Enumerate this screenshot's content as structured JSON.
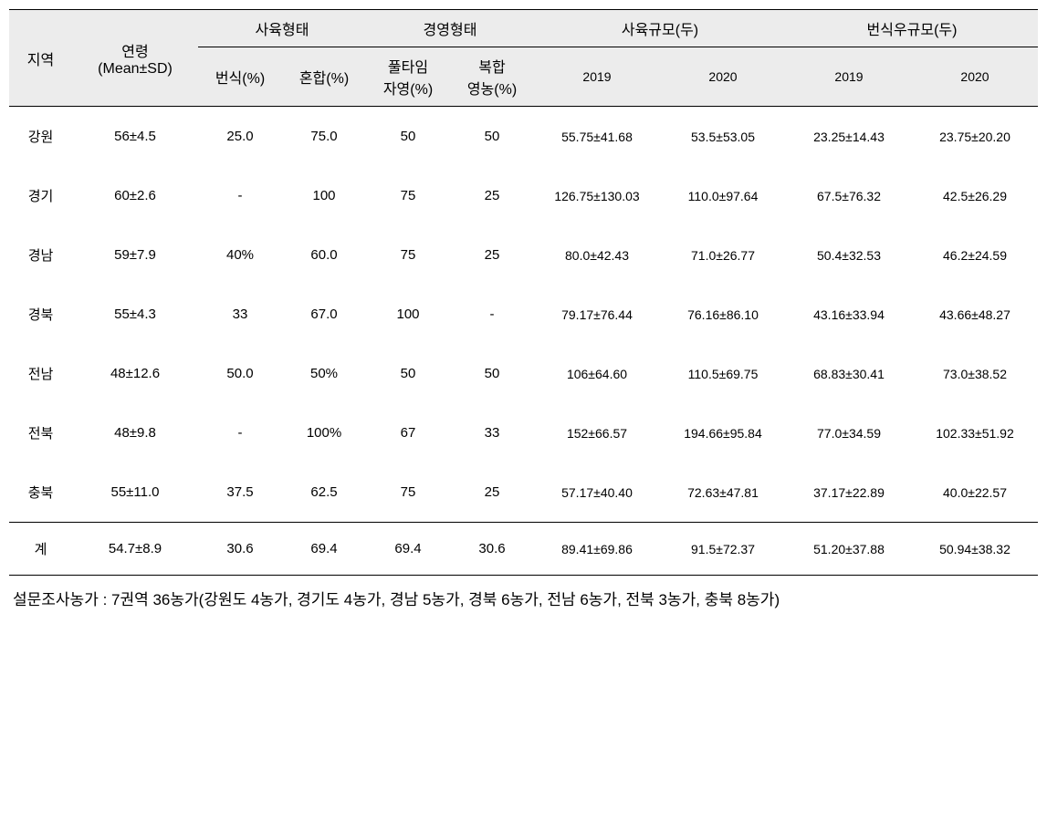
{
  "headers": {
    "region": "지역",
    "age": "연령\n(Mean±SD)",
    "age_line1": "연령",
    "age_line2": "(Mean±SD)",
    "breeding_type": "사육형태",
    "breeding_pct": "번식(%)",
    "mixed_pct": "혼합(%)",
    "management_type": "경영형태",
    "fulltime_line1": "풀타임",
    "fulltime_line2": "자영(%)",
    "complex_line1": "복합",
    "complex_line2": "영농(%)",
    "breeding_scale": "사육규모(두)",
    "reproduction_scale": "번식우규모(두)",
    "year_2019": "2019",
    "year_2020": "2020"
  },
  "rows": [
    {
      "region": "강원",
      "age": "56±4.5",
      "breeding": "25.0",
      "mixed": "75.0",
      "fulltime": "50",
      "complex": "50",
      "scale_2019": "55.75±41.68",
      "scale_2020": "53.5±53.05",
      "repro_2019": "23.25±14.43",
      "repro_2020": "23.75±20.20"
    },
    {
      "region": "경기",
      "age": "60±2.6",
      "breeding": "-",
      "mixed": "100",
      "fulltime": "75",
      "complex": "25",
      "scale_2019": "126.75±130.03",
      "scale_2020": "110.0±97.64",
      "repro_2019": "67.5±76.32",
      "repro_2020": "42.5±26.29"
    },
    {
      "region": "경남",
      "age": "59±7.9",
      "breeding": "40%",
      "mixed": "60.0",
      "fulltime": "75",
      "complex": "25",
      "scale_2019": "80.0±42.43",
      "scale_2020": "71.0±26.77",
      "repro_2019": "50.4±32.53",
      "repro_2020": "46.2±24.59"
    },
    {
      "region": "경북",
      "age": "55±4.3",
      "breeding": "33",
      "mixed": "67.0",
      "fulltime": "100",
      "complex": "-",
      "scale_2019": "79.17±76.44",
      "scale_2020": "76.16±86.10",
      "repro_2019": "43.16±33.94",
      "repro_2020": "43.66±48.27"
    },
    {
      "region": "전남",
      "age": "48±12.6",
      "breeding": "50.0",
      "mixed": "50%",
      "fulltime": "50",
      "complex": "50",
      "scale_2019": "106±64.60",
      "scale_2020": "110.5±69.75",
      "repro_2019": "68.83±30.41",
      "repro_2020": "73.0±38.52"
    },
    {
      "region": "전북",
      "age": "48±9.8",
      "breeding": "-",
      "mixed": "100%",
      "fulltime": "67",
      "complex": "33",
      "scale_2019": "152±66.57",
      "scale_2020": "194.66±95.84",
      "repro_2019": "77.0±34.59",
      "repro_2020": "102.33±51.92"
    },
    {
      "region": "충북",
      "age": "55±11.0",
      "breeding": "37.5",
      "mixed": "62.5",
      "fulltime": "75",
      "complex": "25",
      "scale_2019": "57.17±40.40",
      "scale_2020": "72.63±47.81",
      "repro_2019": "37.17±22.89",
      "repro_2020": "40.0±22.57"
    }
  ],
  "total": {
    "region": "계",
    "age": "54.7±8.9",
    "breeding": "30.6",
    "mixed": "69.4",
    "fulltime": "69.4",
    "complex": "30.6",
    "scale_2019": "89.41±69.86",
    "scale_2020": "91.5±72.37",
    "repro_2019": "51.20±37.88",
    "repro_2020": "50.94±38.32"
  },
  "footnote": "설문조사농가 : 7권역 36농가(강원도 4농가, 경기도 4농가, 경남 5농가, 경북 6농가, 전남 6농가, 전북 3농가, 충북 8농가)",
  "styling": {
    "header_bg": "#ececec",
    "border_color": "#000000",
    "text_color": "#000000",
    "body_font_size": 15,
    "header_font_size": 16,
    "data_font_size": 14,
    "footnote_font_size": 17
  }
}
